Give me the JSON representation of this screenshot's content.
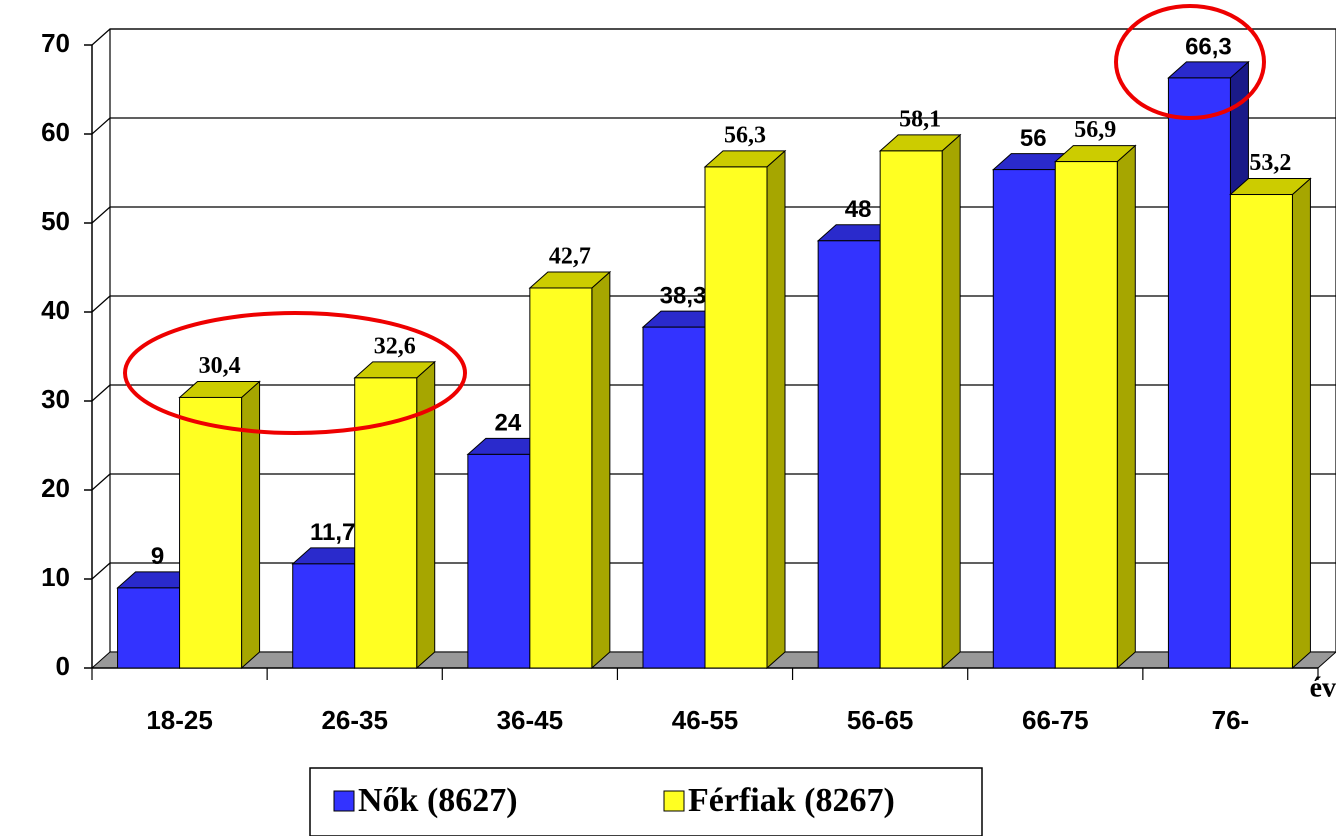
{
  "chart_data": {
    "type": "bar3d",
    "categories": [
      "18-25",
      "26-35",
      "36-45",
      "46-55",
      "56-65",
      "66-75",
      "76-"
    ],
    "series": [
      {
        "name": "Nők (8627)",
        "color": "#3333ff",
        "values": [
          9,
          11.7,
          24,
          38.3,
          48,
          56,
          66.3
        ],
        "value_labels": [
          "9",
          "11,7",
          "24",
          "38,3",
          "48",
          "56",
          "66,3"
        ]
      },
      {
        "name": "Férfiak (8267)",
        "color": "#ffff22",
        "values": [
          30.4,
          32.6,
          42.7,
          56.3,
          58.1,
          56.9,
          53.2
        ],
        "value_labels": [
          "30,4",
          "32,6",
          "42,7",
          "56,3",
          "58,1",
          "56,9",
          "53,2"
        ]
      }
    ],
    "x_label": "év",
    "ylim": [
      0,
      70
    ],
    "yticks": [
      0,
      10,
      20,
      30,
      40,
      50,
      60,
      70
    ],
    "grid": true
  }
}
